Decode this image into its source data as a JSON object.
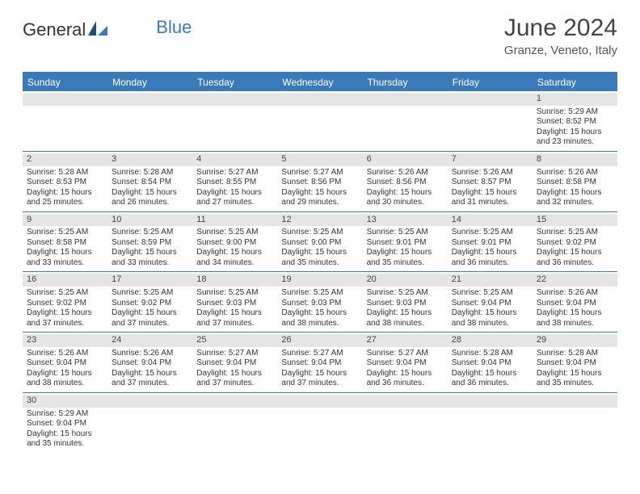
{
  "brand": {
    "part1": "General",
    "part2": "Blue"
  },
  "title": "June 2024",
  "location": "Granze, Veneto, Italy",
  "colors": {
    "accent": "#3a7ab8",
    "daynum_bg": "#e5e5e5",
    "text": "#333333",
    "bg": "#ffffff"
  },
  "day_headers": [
    "Sunday",
    "Monday",
    "Tuesday",
    "Wednesday",
    "Thursday",
    "Friday",
    "Saturday"
  ],
  "weeks": [
    [
      {
        "day": ""
      },
      {
        "day": ""
      },
      {
        "day": ""
      },
      {
        "day": ""
      },
      {
        "day": ""
      },
      {
        "day": ""
      },
      {
        "day": "1",
        "sunrise": "Sunrise: 5:29 AM",
        "sunset": "Sunset: 8:52 PM",
        "dl1": "Daylight: 15 hours",
        "dl2": "and 23 minutes."
      }
    ],
    [
      {
        "day": "2",
        "sunrise": "Sunrise: 5:28 AM",
        "sunset": "Sunset: 8:53 PM",
        "dl1": "Daylight: 15 hours",
        "dl2": "and 25 minutes."
      },
      {
        "day": "3",
        "sunrise": "Sunrise: 5:28 AM",
        "sunset": "Sunset: 8:54 PM",
        "dl1": "Daylight: 15 hours",
        "dl2": "and 26 minutes."
      },
      {
        "day": "4",
        "sunrise": "Sunrise: 5:27 AM",
        "sunset": "Sunset: 8:55 PM",
        "dl1": "Daylight: 15 hours",
        "dl2": "and 27 minutes."
      },
      {
        "day": "5",
        "sunrise": "Sunrise: 5:27 AM",
        "sunset": "Sunset: 8:56 PM",
        "dl1": "Daylight: 15 hours",
        "dl2": "and 29 minutes."
      },
      {
        "day": "6",
        "sunrise": "Sunrise: 5:26 AM",
        "sunset": "Sunset: 8:56 PM",
        "dl1": "Daylight: 15 hours",
        "dl2": "and 30 minutes."
      },
      {
        "day": "7",
        "sunrise": "Sunrise: 5:26 AM",
        "sunset": "Sunset: 8:57 PM",
        "dl1": "Daylight: 15 hours",
        "dl2": "and 31 minutes."
      },
      {
        "day": "8",
        "sunrise": "Sunrise: 5:26 AM",
        "sunset": "Sunset: 8:58 PM",
        "dl1": "Daylight: 15 hours",
        "dl2": "and 32 minutes."
      }
    ],
    [
      {
        "day": "9",
        "sunrise": "Sunrise: 5:25 AM",
        "sunset": "Sunset: 8:58 PM",
        "dl1": "Daylight: 15 hours",
        "dl2": "and 33 minutes."
      },
      {
        "day": "10",
        "sunrise": "Sunrise: 5:25 AM",
        "sunset": "Sunset: 8:59 PM",
        "dl1": "Daylight: 15 hours",
        "dl2": "and 33 minutes."
      },
      {
        "day": "11",
        "sunrise": "Sunrise: 5:25 AM",
        "sunset": "Sunset: 9:00 PM",
        "dl1": "Daylight: 15 hours",
        "dl2": "and 34 minutes."
      },
      {
        "day": "12",
        "sunrise": "Sunrise: 5:25 AM",
        "sunset": "Sunset: 9:00 PM",
        "dl1": "Daylight: 15 hours",
        "dl2": "and 35 minutes."
      },
      {
        "day": "13",
        "sunrise": "Sunrise: 5:25 AM",
        "sunset": "Sunset: 9:01 PM",
        "dl1": "Daylight: 15 hours",
        "dl2": "and 35 minutes."
      },
      {
        "day": "14",
        "sunrise": "Sunrise: 5:25 AM",
        "sunset": "Sunset: 9:01 PM",
        "dl1": "Daylight: 15 hours",
        "dl2": "and 36 minutes."
      },
      {
        "day": "15",
        "sunrise": "Sunrise: 5:25 AM",
        "sunset": "Sunset: 9:02 PM",
        "dl1": "Daylight: 15 hours",
        "dl2": "and 36 minutes."
      }
    ],
    [
      {
        "day": "16",
        "sunrise": "Sunrise: 5:25 AM",
        "sunset": "Sunset: 9:02 PM",
        "dl1": "Daylight: 15 hours",
        "dl2": "and 37 minutes."
      },
      {
        "day": "17",
        "sunrise": "Sunrise: 5:25 AM",
        "sunset": "Sunset: 9:02 PM",
        "dl1": "Daylight: 15 hours",
        "dl2": "and 37 minutes."
      },
      {
        "day": "18",
        "sunrise": "Sunrise: 5:25 AM",
        "sunset": "Sunset: 9:03 PM",
        "dl1": "Daylight: 15 hours",
        "dl2": "and 37 minutes."
      },
      {
        "day": "19",
        "sunrise": "Sunrise: 5:25 AM",
        "sunset": "Sunset: 9:03 PM",
        "dl1": "Daylight: 15 hours",
        "dl2": "and 38 minutes."
      },
      {
        "day": "20",
        "sunrise": "Sunrise: 5:25 AM",
        "sunset": "Sunset: 9:03 PM",
        "dl1": "Daylight: 15 hours",
        "dl2": "and 38 minutes."
      },
      {
        "day": "21",
        "sunrise": "Sunrise: 5:25 AM",
        "sunset": "Sunset: 9:04 PM",
        "dl1": "Daylight: 15 hours",
        "dl2": "and 38 minutes."
      },
      {
        "day": "22",
        "sunrise": "Sunrise: 5:26 AM",
        "sunset": "Sunset: 9:04 PM",
        "dl1": "Daylight: 15 hours",
        "dl2": "and 38 minutes."
      }
    ],
    [
      {
        "day": "23",
        "sunrise": "Sunrise: 5:26 AM",
        "sunset": "Sunset: 9:04 PM",
        "dl1": "Daylight: 15 hours",
        "dl2": "and 38 minutes."
      },
      {
        "day": "24",
        "sunrise": "Sunrise: 5:26 AM",
        "sunset": "Sunset: 9:04 PM",
        "dl1": "Daylight: 15 hours",
        "dl2": "and 37 minutes."
      },
      {
        "day": "25",
        "sunrise": "Sunrise: 5:27 AM",
        "sunset": "Sunset: 9:04 PM",
        "dl1": "Daylight: 15 hours",
        "dl2": "and 37 minutes."
      },
      {
        "day": "26",
        "sunrise": "Sunrise: 5:27 AM",
        "sunset": "Sunset: 9:04 PM",
        "dl1": "Daylight: 15 hours",
        "dl2": "and 37 minutes."
      },
      {
        "day": "27",
        "sunrise": "Sunrise: 5:27 AM",
        "sunset": "Sunset: 9:04 PM",
        "dl1": "Daylight: 15 hours",
        "dl2": "and 36 minutes."
      },
      {
        "day": "28",
        "sunrise": "Sunrise: 5:28 AM",
        "sunset": "Sunset: 9:04 PM",
        "dl1": "Daylight: 15 hours",
        "dl2": "and 36 minutes."
      },
      {
        "day": "29",
        "sunrise": "Sunrise: 5:28 AM",
        "sunset": "Sunset: 9:04 PM",
        "dl1": "Daylight: 15 hours",
        "dl2": "and 35 minutes."
      }
    ],
    [
      {
        "day": "30",
        "sunrise": "Sunrise: 5:29 AM",
        "sunset": "Sunset: 9:04 PM",
        "dl1": "Daylight: 15 hours",
        "dl2": "and 35 minutes."
      },
      {
        "day": ""
      },
      {
        "day": ""
      },
      {
        "day": ""
      },
      {
        "day": ""
      },
      {
        "day": ""
      },
      {
        "day": ""
      }
    ]
  ]
}
